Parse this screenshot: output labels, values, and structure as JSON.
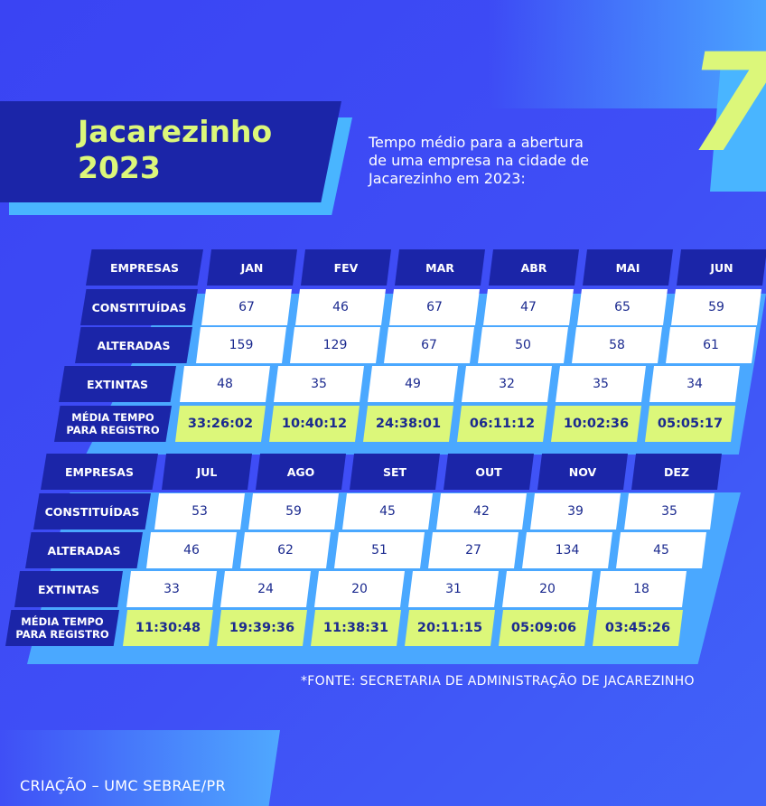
{
  "title": {
    "line1": "Jacarezinho",
    "line2": "2023"
  },
  "subtitle": "Tempo médio para a abertura de uma empresa na cidade de Jacarezinho em 2023:",
  "badge_number": "7",
  "table1": {
    "header": [
      "EMPRESAS",
      "JAN",
      "FEV",
      "MAR",
      "ABR",
      "MAI",
      "JUN"
    ],
    "constituidas": {
      "label": "CONSTITUÍDAS",
      "values": [
        "67",
        "46",
        "67",
        "47",
        "65",
        "59"
      ]
    },
    "alteradas": {
      "label": "ALTERADAS",
      "values": [
        "159",
        "129",
        "67",
        "50",
        "58",
        "61"
      ]
    },
    "extintas": {
      "label": "EXTINTAS",
      "values": [
        "48",
        "35",
        "49",
        "32",
        "35",
        "34"
      ]
    },
    "media": {
      "label1": "MÉDIA TEMPO",
      "label2": "PARA REGISTRO",
      "values": [
        "33:26:02",
        "10:40:12",
        "24:38:01",
        "06:11:12",
        "10:02:36",
        "05:05:17"
      ]
    }
  },
  "table2": {
    "header": [
      "EMPRESAS",
      "JUL",
      "AGO",
      "SET",
      "OUT",
      "NOV",
      "DEZ"
    ],
    "constituidas": {
      "label": "CONSTITUÍDAS",
      "values": [
        "53",
        "59",
        "45",
        "42",
        "39",
        "35"
      ]
    },
    "alteradas": {
      "label": "ALTERADAS",
      "values": [
        "46",
        "62",
        "51",
        "27",
        "134",
        "45"
      ]
    },
    "extintas": {
      "label": "EXTINTAS",
      "values": [
        "33",
        "24",
        "20",
        "31",
        "20",
        "18"
      ]
    },
    "media": {
      "label1": "MÉDIA TEMPO",
      "label2": "PARA REGISTRO",
      "values": [
        "11:30:48",
        "19:39:36",
        "11:38:31",
        "20:11:15",
        "05:09:06",
        "03:45:26"
      ]
    }
  },
  "source": "*FONTE: SECRETARIA DE ADMINISTRAÇÃO DE JACAREZINHO",
  "credit": "CRIAÇÃO – UMC SEBRAE/PR",
  "colors": {
    "background": "#3d4bf6",
    "navy": "#1b25a8",
    "lime": "#dcf77a",
    "cyan": "#4aa8ff",
    "white": "#ffffff"
  }
}
